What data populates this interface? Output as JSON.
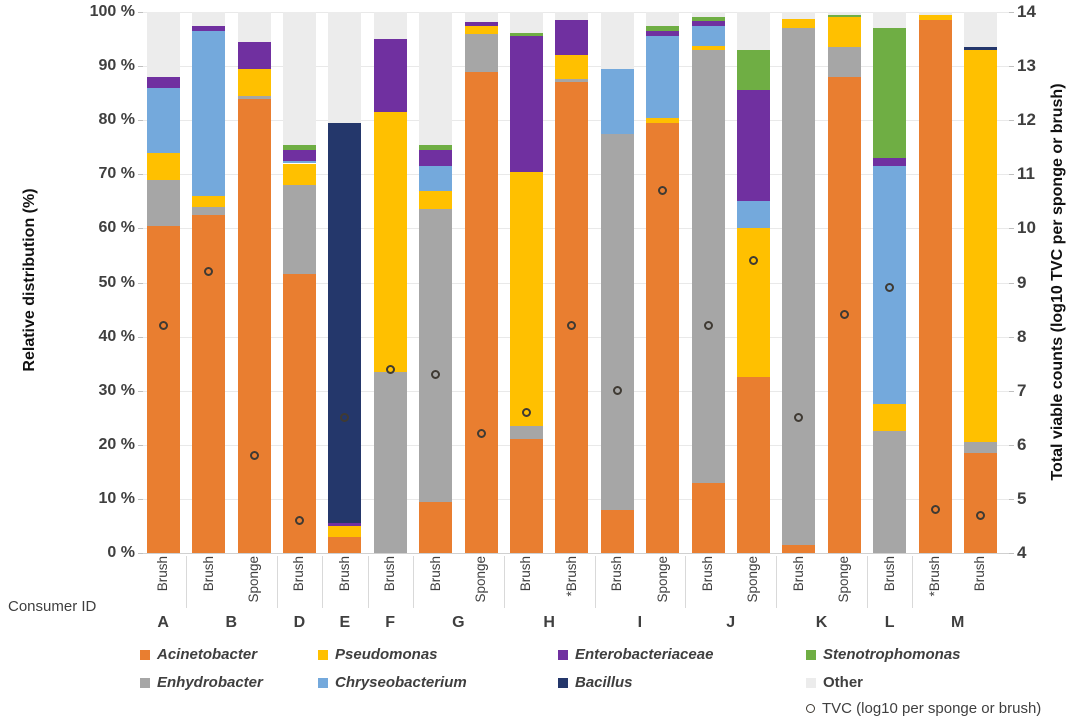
{
  "figure": {
    "left_axis_title": "Relative distribution (%)",
    "right_axis_title": "Total viable counts (log10 TVC per sponge or brush)",
    "consumer_id_caption": "Consumer ID",
    "left_tick_labels": [
      "0 %",
      "10 %",
      "20 %",
      "30 %",
      "40 %",
      "50 %",
      "60 %",
      "70 %",
      "80 %",
      "90 %",
      "100 %"
    ],
    "right_tick_labels": [
      "4",
      "5",
      "6",
      "7",
      "8",
      "9",
      "10",
      "11",
      "12",
      "13",
      "14"
    ]
  },
  "chart_data": {
    "type": "bar",
    "stacked": true,
    "ylim_left": [
      0,
      100
    ],
    "ylim_right": [
      4,
      14
    ],
    "grid": "horizontal, every 10%",
    "legend_position": "bottom",
    "stack_order": [
      "Acinetobacter",
      "Enhydrobacter",
      "Pseudomonas",
      "Chryseobacterium",
      "Enterobacteriaceae",
      "Stenotrophomonas",
      "Bacillus",
      "Other"
    ],
    "series_colors": {
      "Acinetobacter": "#E97E30",
      "Enhydrobacter": "#A6A6A6",
      "Pseudomonas": "#FFC000",
      "Chryseobacterium": "#74A9DC",
      "Enterobacteriaceae": "#7030A0",
      "Stenotrophomonas": "#6FAE44",
      "Bacillus": "#24376B",
      "Other": "#ECECEC"
    },
    "tvc_series_name": "TVC (log10 per sponge or brush)",
    "tvc_marker_color": "#3f3a33",
    "bars": [
      {
        "consumer": "A",
        "sample": "Brush",
        "tvc": 8.2,
        "values": {
          "Acinetobacter": 60.5,
          "Enhydrobacter": 8.5,
          "Pseudomonas": 5,
          "Chryseobacterium": 12,
          "Enterobacteriaceae": 2,
          "Other": 12
        }
      },
      {
        "consumer": "B",
        "sample": "Brush",
        "tvc": 9.2,
        "values": {
          "Acinetobacter": 62.5,
          "Enhydrobacter": 1.5,
          "Pseudomonas": 2,
          "Chryseobacterium": 30.5,
          "Enterobacteriaceae": 1,
          "Other": 2.5
        }
      },
      {
        "consumer": "B",
        "sample": "Sponge",
        "tvc": 5.8,
        "values": {
          "Acinetobacter": 84,
          "Enhydrobacter": 0.5,
          "Pseudomonas": 5,
          "Enterobacteriaceae": 5,
          "Other": 5.5
        }
      },
      {
        "consumer": "D",
        "sample": "Brush",
        "tvc": 4.6,
        "values": {
          "Acinetobacter": 51.5,
          "Enhydrobacter": 16.5,
          "Pseudomonas": 4,
          "Chryseobacterium": 0.5,
          "Enterobacteriaceae": 2,
          "Stenotrophomonas": 1,
          "Other": 24.5
        }
      },
      {
        "consumer": "E",
        "sample": "Brush",
        "tvc": 6.5,
        "values": {
          "Acinetobacter": 3,
          "Pseudomonas": 2,
          "Enterobacteriaceae": 0.5,
          "Bacillus": 74,
          "Other": 20.5
        }
      },
      {
        "consumer": "F",
        "sample": "Brush",
        "tvc": 7.4,
        "values": {
          "Enhydrobacter": 33.5,
          "Pseudomonas": 48,
          "Enterobacteriaceae": 13.5,
          "Other": 5
        }
      },
      {
        "consumer": "G",
        "sample": "Brush",
        "tvc": 7.3,
        "values": {
          "Acinetobacter": 9.5,
          "Enhydrobacter": 54,
          "Pseudomonas": 3.5,
          "Chryseobacterium": 4.5,
          "Enterobacteriaceae": 3,
          "Stenotrophomonas": 1,
          "Other": 24.5
        }
      },
      {
        "consumer": "G",
        "sample": "Sponge",
        "tvc": 6.2,
        "values": {
          "Acinetobacter": 89,
          "Enhydrobacter": 7,
          "Pseudomonas": 1.5,
          "Enterobacteriaceae": 0.7,
          "Other": 1.8
        }
      },
      {
        "consumer": "H",
        "sample": "Brush",
        "tvc": 6.6,
        "values": {
          "Acinetobacter": 21,
          "Enhydrobacter": 2.5,
          "Pseudomonas": 47,
          "Enterobacteriaceae": 25,
          "Stenotrophomonas": 0.7,
          "Other": 3.8
        }
      },
      {
        "consumer": "H",
        "sample": "*Brush",
        "tvc": 8.2,
        "values": {
          "Acinetobacter": 87,
          "Enhydrobacter": 0.7,
          "Pseudomonas": 4.3,
          "Enterobacteriaceae": 6.5,
          "Other": 1.5
        }
      },
      {
        "consumer": "I",
        "sample": "Brush",
        "tvc": 7.0,
        "values": {
          "Acinetobacter": 8,
          "Enhydrobacter": 69.5,
          "Chryseobacterium": 12,
          "Other": 10.5
        }
      },
      {
        "consumer": "I",
        "sample": "Sponge",
        "tvc": 10.7,
        "values": {
          "Acinetobacter": 79.5,
          "Pseudomonas": 1,
          "Chryseobacterium": 15,
          "Enterobacteriaceae": 1,
          "Stenotrophomonas": 1,
          "Other": 2.5
        }
      },
      {
        "consumer": "J",
        "sample": "Brush",
        "tvc": 8.2,
        "values": {
          "Acinetobacter": 13,
          "Enhydrobacter": 80,
          "Pseudomonas": 0.7,
          "Chryseobacterium": 3.8,
          "Enterobacteriaceae": 0.8,
          "Stenotrophomonas": 0.7,
          "Other": 1
        }
      },
      {
        "consumer": "J",
        "sample": "Sponge",
        "tvc": 9.4,
        "values": {
          "Acinetobacter": 32.5,
          "Pseudomonas": 27.5,
          "Chryseobacterium": 5,
          "Enterobacteriaceae": 20.5,
          "Stenotrophomonas": 7.5,
          "Other": 7
        }
      },
      {
        "consumer": "K",
        "sample": "Brush",
        "tvc": 6.5,
        "values": {
          "Acinetobacter": 1.5,
          "Enhydrobacter": 95.5,
          "Pseudomonas": 1.8,
          "Other": 1.2
        }
      },
      {
        "consumer": "K",
        "sample": "Sponge",
        "tvc": 8.4,
        "values": {
          "Acinetobacter": 88,
          "Enhydrobacter": 5.5,
          "Pseudomonas": 5.5,
          "Stenotrophomonas": 0.5,
          "Other": 0.5
        }
      },
      {
        "consumer": "L",
        "sample": "Brush",
        "tvc": 8.9,
        "values": {
          "Enhydrobacter": 22.5,
          "Pseudomonas": 5,
          "Chryseobacterium": 44,
          "Enterobacteriaceae": 1.5,
          "Stenotrophomonas": 24,
          "Other": 3
        }
      },
      {
        "consumer": "M",
        "sample": "*Brush",
        "tvc": 4.8,
        "values": {
          "Acinetobacter": 98.5,
          "Pseudomonas": 1,
          "Other": 0.5
        }
      },
      {
        "consumer": "M",
        "sample": "Brush",
        "tvc": 4.7,
        "values": {
          "Acinetobacter": 18.5,
          "Enhydrobacter": 2,
          "Pseudomonas": 72.5,
          "Bacillus": 0.5,
          "Other": 6.5
        }
      }
    ]
  },
  "legend": {
    "rows": [
      [
        {
          "label": "Acinetobacter",
          "color": "#E97E30",
          "italic": true
        },
        {
          "label": "Pseudomonas",
          "color": "#FFC000",
          "italic": true
        },
        {
          "label": "Enterobacteriaceae",
          "color": "#7030A0",
          "italic": true
        },
        {
          "label": "Stenotrophomonas",
          "color": "#6FAE44",
          "italic": true
        }
      ],
      [
        {
          "label": "Enhydrobacter",
          "color": "#A6A6A6",
          "italic": true
        },
        {
          "label": "Chryseobacterium",
          "color": "#74A9DC",
          "italic": true
        },
        {
          "label": "Bacillus",
          "color": "#24376B",
          "italic": true
        },
        {
          "label": "Other",
          "color": "#ECECEC",
          "italic": false
        }
      ]
    ],
    "tvc_item_label": "TVC (log10 per sponge or brush)"
  }
}
